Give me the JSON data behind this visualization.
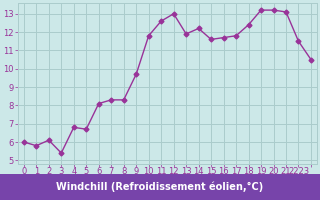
{
  "x": [
    0,
    1,
    2,
    3,
    4,
    5,
    6,
    7,
    8,
    9,
    10,
    11,
    12,
    13,
    14,
    15,
    16,
    17,
    18,
    19,
    20,
    21,
    22,
    23
  ],
  "y": [
    6.0,
    5.8,
    6.1,
    5.4,
    6.8,
    6.7,
    8.1,
    8.3,
    8.3,
    9.7,
    11.8,
    12.6,
    13.0,
    11.9,
    12.2,
    11.6,
    11.7,
    11.8,
    12.4,
    13.2,
    13.2,
    13.1,
    11.5,
    10.5
  ],
  "line_color": "#993399",
  "marker": "D",
  "marker_size": 2.5,
  "bg_color": "#cce8e8",
  "grid_color": "#aacccc",
  "xlabel": "Windchill (Refroidissement éolien,°C)",
  "xlabel_color": "#ffffff",
  "xlabel_bg": "#7744aa",
  "ylabel_ticks": [
    5,
    6,
    7,
    8,
    9,
    10,
    11,
    12,
    13
  ],
  "ylim": [
    4.8,
    13.6
  ],
  "xlim": [
    -0.5,
    23.5
  ],
  "tick_color": "#993399",
  "tick_fontsize": 6.0,
  "xlabel_fontsize": 7.0
}
